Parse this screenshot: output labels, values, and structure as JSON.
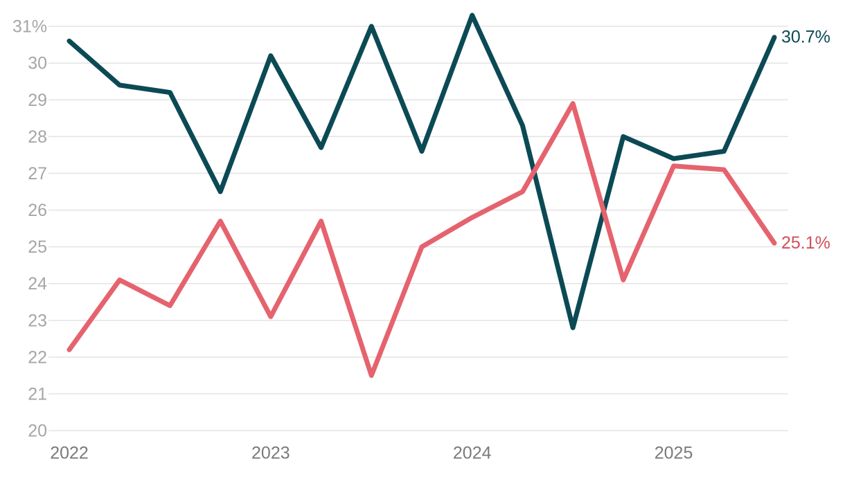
{
  "chart_data": {
    "type": "line",
    "x": [
      2022,
      2022.25,
      2022.5,
      2022.75,
      2023,
      2023.25,
      2023.5,
      2023.75,
      2024,
      2024.25,
      2024.5,
      2024.75,
      2025,
      2025.25,
      2025.5
    ],
    "xlim": [
      2022,
      2025.5
    ],
    "xticks": [
      2022,
      2023,
      2024,
      2025
    ],
    "ylim": [
      20,
      31
    ],
    "yticks": [
      20,
      21,
      22,
      23,
      24,
      25,
      26,
      27,
      28,
      29,
      30,
      {
        "value": 31,
        "label": "31%"
      }
    ],
    "grid": true,
    "series": [
      {
        "color": "#0b4a55",
        "label_color": "#0b4a55",
        "values": [
          30.6,
          29.4,
          29.2,
          26.5,
          30.2,
          27.7,
          31.0,
          27.6,
          31.3,
          28.3,
          22.8,
          28.0,
          27.4,
          27.6,
          30.7
        ],
        "value_labels": [
          null,
          null,
          null,
          null,
          null,
          null,
          null,
          null,
          null,
          null,
          null,
          null,
          null,
          null,
          "30.7%"
        ]
      },
      {
        "color": "#e5636e",
        "label_color": "#d0505b",
        "values": [
          22.2,
          24.1,
          23.4,
          25.7,
          23.1,
          25.7,
          21.5,
          25.0,
          25.8,
          26.5,
          28.9,
          24.1,
          27.2,
          27.1,
          25.1
        ],
        "value_labels": [
          null,
          null,
          null,
          null,
          null,
          null,
          null,
          null,
          null,
          null,
          null,
          null,
          null,
          null,
          "25.1%"
        ]
      }
    ]
  }
}
